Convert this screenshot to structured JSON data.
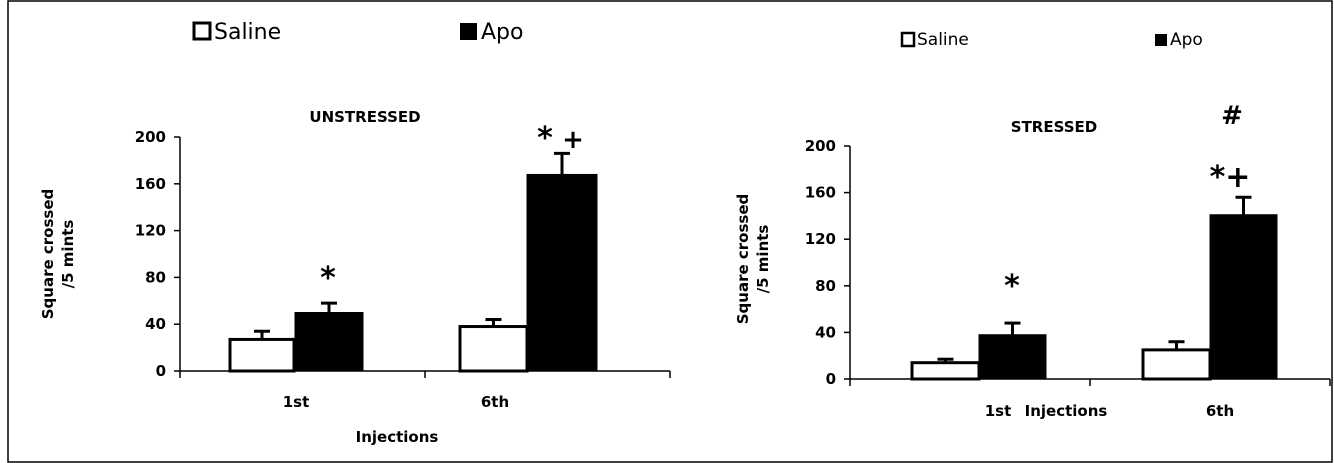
{
  "chart_data": [
    {
      "type": "bar",
      "title": "UNSTRESSED",
      "xlabel": "Injections",
      "ylabel": [
        "Square crossed",
        "/5 mints"
      ],
      "ylim": [
        0,
        200
      ],
      "yticks": [
        "0",
        "40",
        "80",
        "120",
        "160",
        "200"
      ],
      "categories": [
        "1st",
        "6th"
      ],
      "series": [
        {
          "name": "Saline",
          "color": "#ffffff",
          "values": [
            27,
            38
          ],
          "errors": [
            7,
            6
          ]
        },
        {
          "name": "Apo",
          "color": "#000000",
          "values": [
            50,
            168
          ],
          "errors": [
            8,
            18
          ]
        }
      ],
      "annotations": [
        {
          "category": "1st",
          "text": "*"
        },
        {
          "category": "6th",
          "text": "*"
        },
        {
          "category": "6th",
          "text": "+"
        }
      ],
      "legend_position": "top"
    },
    {
      "type": "bar",
      "title": "STRESSED",
      "xlabel": "Injections",
      "ylabel": [
        "Square crossed",
        "/5 mints"
      ],
      "ylim": [
        0,
        200
      ],
      "yticks": [
        "0",
        "40",
        "80",
        "120",
        "160",
        "200"
      ],
      "categories": [
        "1st",
        "6th"
      ],
      "series": [
        {
          "name": "Saline",
          "color": "#ffffff",
          "values": [
            14,
            25
          ],
          "errors": [
            3,
            7
          ]
        },
        {
          "name": "Apo",
          "color": "#000000",
          "values": [
            38,
            141
          ],
          "errors": [
            10,
            15
          ]
        }
      ],
      "annotations": [
        {
          "category": "1st",
          "text": "*"
        },
        {
          "category": "6th",
          "text": "*+"
        },
        {
          "category": "6th",
          "text": "#"
        }
      ],
      "legend_position": "top"
    }
  ]
}
